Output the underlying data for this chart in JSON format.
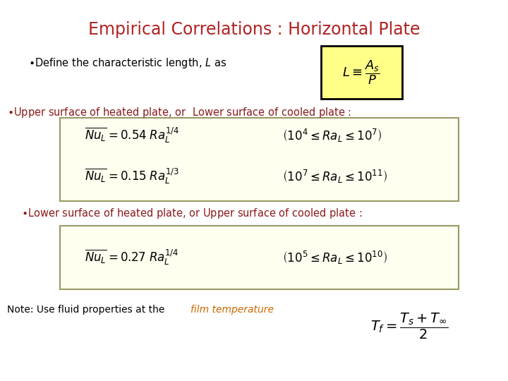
{
  "title": "Empirical Correlations : Horizontal Plate",
  "title_color": "#B22222",
  "title_fontsize": 17,
  "background_color": "#ffffff",
  "bullet_color": "#8B1A1A",
  "box1_bg": "#ffff88",
  "eq_box_bg": "#fffff0",
  "eq_box_border": "#888855",
  "note_color": "#000000",
  "note_italic_color": "#CC6600",
  "tf_color": "#000000"
}
